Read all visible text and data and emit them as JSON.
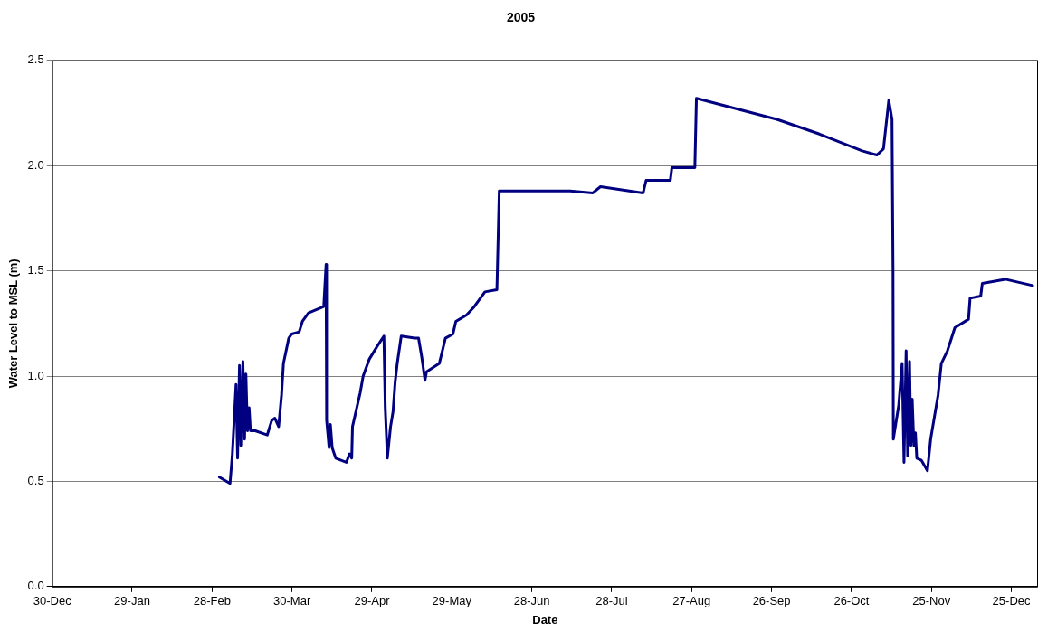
{
  "chart_data": {
    "type": "line",
    "title": "2005",
    "xlabel": "Date",
    "ylabel": "Water Level to MSL (m)",
    "x": [
      "2005-03-02T18:00",
      "2005-03-06T18:00",
      "2005-03-07T14:00",
      "2005-03-09T00:00",
      "2005-03-09T14:00",
      "2005-03-10T07:00",
      "2005-03-10T19:00",
      "2005-03-11T14:00",
      "2005-03-12T05:00",
      "2005-03-12T17:00",
      "2005-03-13T07:00",
      "2005-03-13T22:00",
      "2005-03-14T10:00",
      "2005-03-16T05:00",
      "2005-03-20T17:00",
      "2005-03-22T10:00",
      "2005-03-23T14:00",
      "2005-03-25T00:00",
      "2005-03-26T02:00",
      "2005-03-26T19:00",
      "2005-03-28T19:00",
      "2005-03-29T22:00",
      "2005-04-01T17:00",
      "2005-04-02T22:00",
      "2005-04-05T05:00",
      "2005-04-10T22:00",
      "2005-04-11T19:00",
      "2005-04-12T00:00",
      "2005-04-12T22:00",
      "2005-04-13T10:00",
      "2005-04-14T02:00",
      "2005-04-15T10:00",
      "2005-04-19T10:00",
      "2005-04-20T14:00",
      "2005-04-21T10:00",
      "2005-04-21T17:00",
      "2005-04-24T14:00",
      "2005-04-25T17:00",
      "2005-04-28T00:00",
      "2005-04-30T22:00",
      "2005-05-03T12:00",
      "2005-05-04T00:00",
      "2005-05-04T19:00",
      "2005-05-06T00:00",
      "2005-05-06T22:00",
      "2005-05-07T17:00",
      "2005-05-08T12:00",
      "2005-05-10T00:00",
      "2005-05-15T02:00",
      "2005-05-16T12:00",
      "2005-05-17T17:00",
      "2005-05-18T22:00",
      "2005-05-19T12:00",
      "2005-05-24T07:00",
      "2005-05-26T14:00",
      "2005-05-29T10:00",
      "2005-05-30T12:00",
      "2005-06-03T12:00",
      "2005-06-06T10:00",
      "2005-06-10T10:00",
      "2005-06-14T22:00",
      "2005-06-15T19:00",
      "2005-07-12T10:00",
      "2005-07-20T22:00",
      "2005-07-23T19:00",
      "2005-08-08T19:00",
      "2005-08-09T22:00",
      "2005-08-19T00:00",
      "2005-08-19T14:00",
      "2005-08-28T05:00",
      "2005-08-28T19:00",
      "2005-09-09T19:00",
      "2005-09-28T00:00",
      "2005-10-14T00:00",
      "2005-10-30T00:00",
      "2005-11-04T12:00",
      "2005-11-07T00:00",
      "2005-11-09T00:00",
      "2005-11-10T05:00",
      "2005-11-10T14:00",
      "2005-11-10T17:00",
      "2005-11-12T17:00",
      "2005-11-14T00:00",
      "2005-11-14T17:00",
      "2005-11-15T12:00",
      "2005-11-16T02:00",
      "2005-11-16T19:00",
      "2005-11-17T07:00",
      "2005-11-17T19:00",
      "2005-11-18T10:00",
      "2005-11-19T00:00",
      "2005-11-19T12:00",
      "2005-11-21T05:00",
      "2005-11-23T12:00",
      "2005-11-24T17:00",
      "2005-11-27T12:00",
      "2005-11-28T17:00",
      "2005-12-01T00:00",
      "2005-12-03T19:00",
      "2005-12-08T22:00",
      "2005-12-09T12:00",
      "2005-12-13T12:00",
      "2005-12-14T02:00",
      "2005-12-22T17:00",
      "2006-01-02T00:00"
    ],
    "series": [
      {
        "color": "#000080",
        "values": [
          0.52,
          0.49,
          0.62,
          0.96,
          0.61,
          1.05,
          0.67,
          1.07,
          0.7,
          1.01,
          0.74,
          0.85,
          0.74,
          0.74,
          0.72,
          0.79,
          0.8,
          0.76,
          0.91,
          1.06,
          1.18,
          1.2,
          1.21,
          1.26,
          1.3,
          1.33,
          1.53,
          0.79,
          0.66,
          0.77,
          0.66,
          0.61,
          0.59,
          0.63,
          0.61,
          0.76,
          0.92,
          1.0,
          1.08,
          1.14,
          1.19,
          0.85,
          0.61,
          0.76,
          0.83,
          0.97,
          1.06,
          1.19,
          1.18,
          1.18,
          1.09,
          0.98,
          1.02,
          1.06,
          1.18,
          1.2,
          1.26,
          1.29,
          1.33,
          1.4,
          1.41,
          1.88,
          1.88,
          1.87,
          1.9,
          1.87,
          1.93,
          1.93,
          1.99,
          1.99,
          2.32,
          2.28,
          2.22,
          2.15,
          2.07,
          2.05,
          2.08,
          2.31,
          2.22,
          1.5,
          0.7,
          0.86,
          1.06,
          0.59,
          1.12,
          0.62,
          1.07,
          0.67,
          0.89,
          0.67,
          0.73,
          0.61,
          0.6,
          0.55,
          0.7,
          0.91,
          1.06,
          1.12,
          1.23,
          1.27,
          1.37,
          1.38,
          1.44,
          1.46,
          1.43
        ]
      }
    ],
    "xlim": [
      "2004-12-30",
      "2006-01-04"
    ],
    "xticks": [
      {
        "value": "2004-12-30",
        "label": "30-Dec"
      },
      {
        "value": "2005-01-29",
        "label": "29-Jan"
      },
      {
        "value": "2005-02-28",
        "label": "28-Feb"
      },
      {
        "value": "2005-03-30",
        "label": "30-Mar"
      },
      {
        "value": "2005-04-29",
        "label": "29-Apr"
      },
      {
        "value": "2005-05-29",
        "label": "29-May"
      },
      {
        "value": "2005-06-28",
        "label": "28-Jun"
      },
      {
        "value": "2005-07-28",
        "label": "28-Jul"
      },
      {
        "value": "2005-08-27",
        "label": "27-Aug"
      },
      {
        "value": "2005-09-26",
        "label": "26-Sep"
      },
      {
        "value": "2005-10-26",
        "label": "26-Oct"
      },
      {
        "value": "2005-11-25",
        "label": "25-Nov"
      },
      {
        "value": "2005-12-25",
        "label": "25-Dec"
      }
    ],
    "ylim": [
      0,
      2.5
    ],
    "yticks": [
      {
        "value": 0,
        "label": "0.0"
      },
      {
        "value": 0.5,
        "label": "0.5"
      },
      {
        "value": 1,
        "label": "1.0"
      },
      {
        "value": 1.5,
        "label": "1.5"
      },
      {
        "value": 2,
        "label": "2.0"
      },
      {
        "value": 2.5,
        "label": "2.5"
      }
    ],
    "grid": "y",
    "marker": "none"
  }
}
